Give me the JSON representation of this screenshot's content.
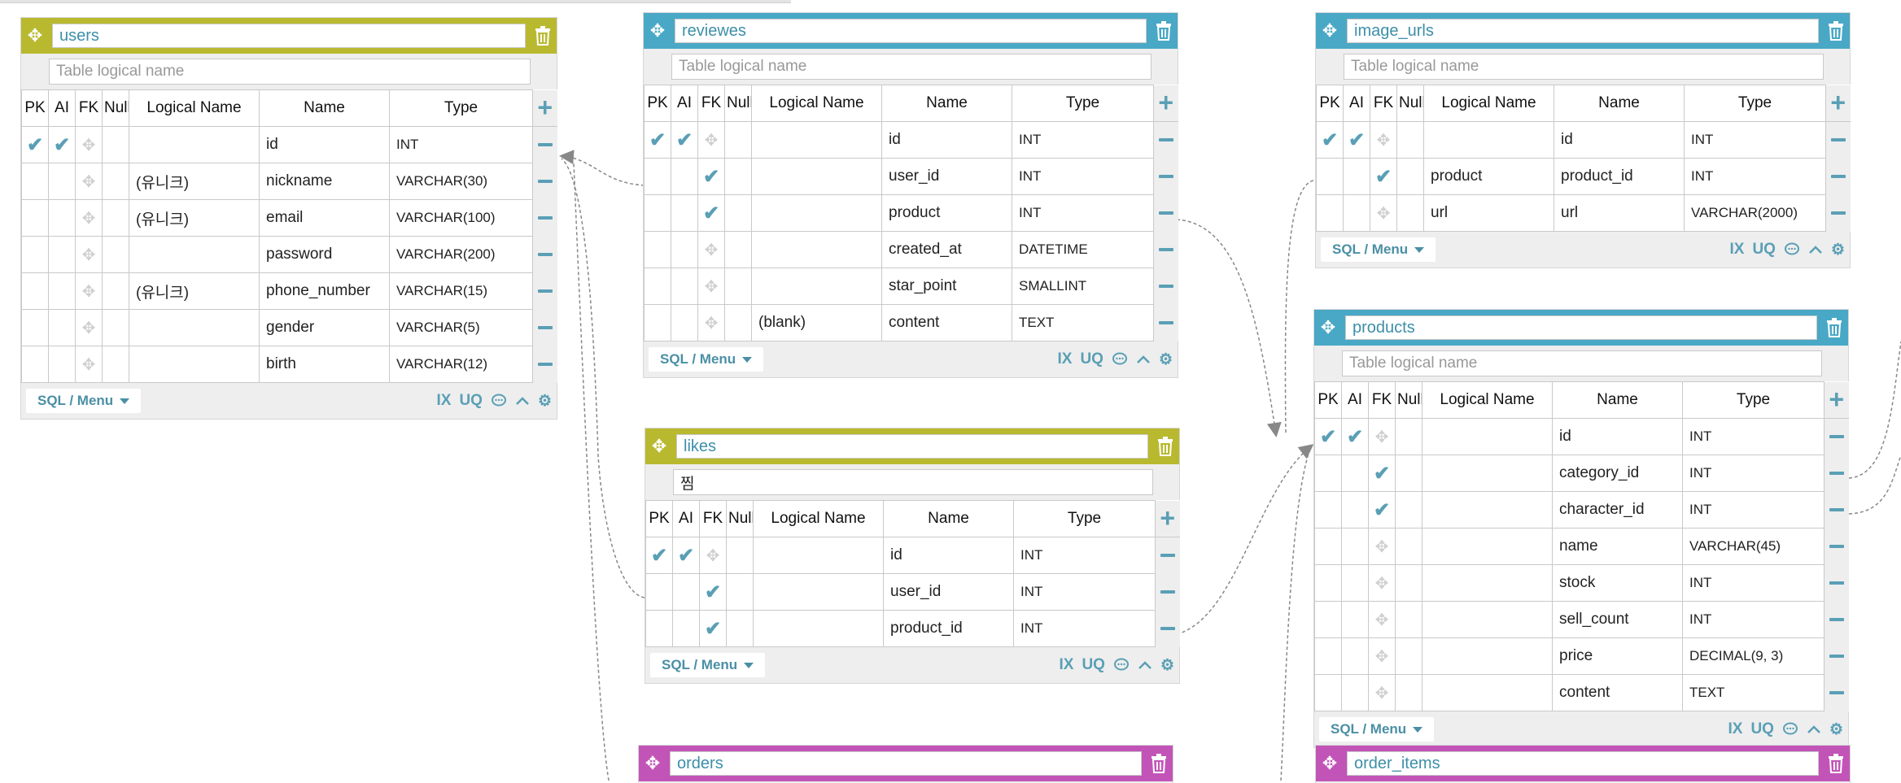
{
  "columns": {
    "pk": "PK",
    "ai": "AI",
    "fk": "FK",
    "null": "Null",
    "logical": "Logical Name",
    "name": "Name",
    "type": "Type"
  },
  "footer": {
    "sql_menu": "SQL / Menu",
    "ix": "IX",
    "uq": "UQ"
  },
  "colors": {
    "olive": "#b9b930",
    "teal": "#49a8c5",
    "pink": "#c254b8",
    "accent": "#5a9fb5"
  },
  "tables": {
    "users": {
      "name": "users",
      "logical_placeholder": "Table logical name",
      "logical_value": "",
      "rows": [
        {
          "pk": true,
          "ai": true,
          "fk": false,
          "logical": "",
          "name": "id",
          "type": "INT"
        },
        {
          "pk": false,
          "ai": false,
          "fk": false,
          "logical": "(유니크)",
          "name": "nickname",
          "type": "VARCHAR(30)"
        },
        {
          "pk": false,
          "ai": false,
          "fk": false,
          "logical": "(유니크)",
          "name": "email",
          "type": "VARCHAR(100)"
        },
        {
          "pk": false,
          "ai": false,
          "fk": false,
          "logical": "",
          "name": "password",
          "type": "VARCHAR(200)"
        },
        {
          "pk": false,
          "ai": false,
          "fk": false,
          "logical": "(유니크)",
          "name": "phone_number",
          "type": "VARCHAR(15)"
        },
        {
          "pk": false,
          "ai": false,
          "fk": false,
          "logical": "",
          "name": "gender",
          "type": "VARCHAR(5)"
        },
        {
          "pk": false,
          "ai": false,
          "fk": false,
          "logical": "",
          "name": "birth",
          "type": "VARCHAR(12)"
        }
      ]
    },
    "reviewes": {
      "name": "reviewes",
      "logical_placeholder": "Table logical name",
      "logical_value": "",
      "rows": [
        {
          "pk": true,
          "ai": true,
          "fk": false,
          "logical": "",
          "name": "id",
          "type": "INT"
        },
        {
          "pk": false,
          "ai": false,
          "fk": true,
          "logical": "",
          "name": "user_id",
          "type": "INT"
        },
        {
          "pk": false,
          "ai": false,
          "fk": true,
          "logical": "",
          "name": "product",
          "type": "INT"
        },
        {
          "pk": false,
          "ai": false,
          "fk": false,
          "logical": "",
          "name": "created_at",
          "type": "DATETIME"
        },
        {
          "pk": false,
          "ai": false,
          "fk": false,
          "logical": "",
          "name": "star_point",
          "type": "SMALLINT"
        },
        {
          "pk": false,
          "ai": false,
          "fk": false,
          "logical": "(blank)",
          "name": "content",
          "type": "TEXT"
        }
      ]
    },
    "likes": {
      "name": "likes",
      "logical_placeholder": "Table logical name",
      "logical_value": "찜",
      "rows": [
        {
          "pk": true,
          "ai": true,
          "fk": false,
          "logical": "",
          "name": "id",
          "type": "INT"
        },
        {
          "pk": false,
          "ai": false,
          "fk": true,
          "logical": "",
          "name": "user_id",
          "type": "INT"
        },
        {
          "pk": false,
          "ai": false,
          "fk": true,
          "logical": "",
          "name": "product_id",
          "type": "INT"
        }
      ]
    },
    "image_urls": {
      "name": "image_urls",
      "logical_placeholder": "Table logical name",
      "logical_value": "",
      "rows": [
        {
          "pk": true,
          "ai": true,
          "fk": false,
          "logical": "",
          "name": "id",
          "type": "INT"
        },
        {
          "pk": false,
          "ai": false,
          "fk": true,
          "logical": "product",
          "name": "product_id",
          "type": "INT"
        },
        {
          "pk": false,
          "ai": false,
          "fk": false,
          "logical": "url",
          "name": "url",
          "type": "VARCHAR(2000)"
        }
      ]
    },
    "products": {
      "name": "products",
      "logical_placeholder": "Table logical name",
      "logical_value": "",
      "rows": [
        {
          "pk": true,
          "ai": true,
          "fk": false,
          "logical": "",
          "name": "id",
          "type": "INT"
        },
        {
          "pk": false,
          "ai": false,
          "fk": true,
          "logical": "",
          "name": "category_id",
          "type": "INT"
        },
        {
          "pk": false,
          "ai": false,
          "fk": true,
          "logical": "",
          "name": "character_id",
          "type": "INT"
        },
        {
          "pk": false,
          "ai": false,
          "fk": false,
          "logical": "",
          "name": "name",
          "type": "VARCHAR(45)"
        },
        {
          "pk": false,
          "ai": false,
          "fk": false,
          "logical": "",
          "name": "stock",
          "type": "INT"
        },
        {
          "pk": false,
          "ai": false,
          "fk": false,
          "logical": "",
          "name": "sell_count",
          "type": "INT"
        },
        {
          "pk": false,
          "ai": false,
          "fk": false,
          "logical": "",
          "name": "price",
          "type": "DECIMAL(9, 3)"
        },
        {
          "pk": false,
          "ai": false,
          "fk": false,
          "logical": "",
          "name": "content",
          "type": "TEXT"
        }
      ]
    },
    "orders": {
      "name": "orders"
    },
    "order_items": {
      "name": "order_items"
    }
  }
}
